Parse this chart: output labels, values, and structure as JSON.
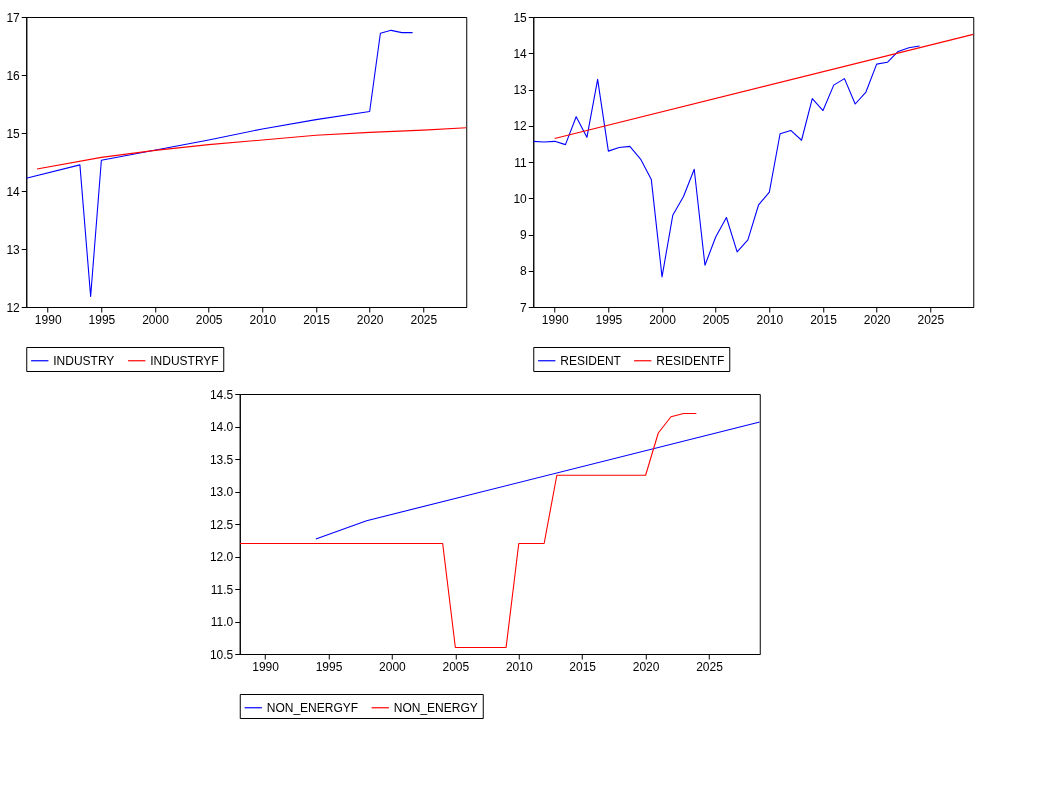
{
  "chart_data": [
    {
      "type": "line",
      "xlim": [
        1988,
        2029
      ],
      "xticks": [
        1990,
        1995,
        2000,
        2005,
        2010,
        2015,
        2020,
        2025
      ],
      "ylim": [
        12,
        17
      ],
      "yticks": [
        12,
        13,
        14,
        15,
        16,
        17
      ],
      "grid": false,
      "legend": "bottom",
      "series": [
        {
          "name": "INDUSTRY",
          "color": "#0000ff",
          "x": [
            1988,
            1993,
            1994,
            1995,
            2005,
            2010,
            2015,
            2020,
            2021,
            2022,
            2023,
            2024
          ],
          "values": [
            14.22,
            14.45,
            12.18,
            14.53,
            14.88,
            15.07,
            15.23,
            15.37,
            16.72,
            16.77,
            16.73,
            16.73
          ]
        },
        {
          "name": "INDUSTRYF",
          "color": "#ff0000",
          "x": [
            1989,
            1995,
            2000,
            2005,
            2010,
            2015,
            2020,
            2025,
            2029
          ],
          "values": [
            14.38,
            14.58,
            14.7,
            14.8,
            14.88,
            14.96,
            15.01,
            15.05,
            15.09
          ]
        }
      ]
    },
    {
      "type": "line",
      "xlim": [
        1988,
        2029
      ],
      "xticks": [
        1990,
        1995,
        2000,
        2005,
        2010,
        2015,
        2020,
        2025
      ],
      "ylim": [
        7,
        15
      ],
      "yticks": [
        7,
        8,
        9,
        10,
        11,
        12,
        13,
        14,
        15
      ],
      "grid": false,
      "legend": "bottom",
      "series": [
        {
          "name": "RESIDENT",
          "color": "#0000ff",
          "x": [
            1988,
            1989,
            1990,
            1991,
            1992,
            1993,
            1994,
            1995,
            1996,
            1997,
            1998,
            1999,
            2000,
            2001,
            2002,
            2003,
            2004,
            2005,
            2006,
            2007,
            2008,
            2009,
            2010,
            2011,
            2012,
            2013,
            2014,
            2015,
            2016,
            2017,
            2018,
            2019,
            2020,
            2021,
            2022,
            2023,
            2024
          ],
          "values": [
            11.57,
            11.55,
            11.57,
            11.48,
            12.25,
            11.68,
            13.28,
            11.3,
            11.4,
            11.43,
            11.08,
            10.52,
            7.83,
            9.53,
            10.05,
            10.8,
            8.15,
            8.93,
            9.47,
            8.52,
            8.85,
            9.82,
            10.17,
            11.78,
            11.87,
            11.6,
            12.75,
            12.42,
            13.12,
            13.3,
            12.6,
            12.93,
            13.7,
            13.75,
            14.05,
            14.15,
            14.2
          ]
        },
        {
          "name": "RESIDENTF",
          "color": "#ff0000",
          "x": [
            1990,
            2029
          ],
          "values": [
            11.65,
            14.52
          ]
        }
      ]
    },
    {
      "type": "line",
      "xlim": [
        1988,
        2029
      ],
      "xticks": [
        1990,
        1995,
        2000,
        2005,
        2010,
        2015,
        2020,
        2025
      ],
      "ylim": [
        10.5,
        14.5
      ],
      "yticks": [
        10.5,
        {
          "value": 11,
          "label": "11.0"
        },
        11.5,
        {
          "value": 12,
          "label": "12.0"
        },
        12.5,
        {
          "value": 13,
          "label": "13.0"
        },
        13.5,
        {
          "value": 14,
          "label": "14.0"
        },
        14.5
      ],
      "grid": false,
      "legend": "bottom",
      "series": [
        {
          "name": "NON_ENERGYF",
          "color": "#0000ff",
          "x": [
            1994,
            1998,
            2029
          ],
          "values": [
            12.27,
            12.55,
            14.07
          ]
        },
        {
          "name": "NON_ENERGY",
          "color": "#ff0000",
          "x": [
            1988,
            2004,
            2005,
            2009,
            2010,
            2012,
            2013,
            2020,
            2021,
            2022,
            2023,
            2024
          ],
          "values": [
            12.2,
            12.2,
            10.6,
            10.6,
            12.2,
            12.2,
            13.25,
            13.25,
            13.9,
            14.15,
            14.2,
            14.2
          ]
        }
      ]
    }
  ]
}
